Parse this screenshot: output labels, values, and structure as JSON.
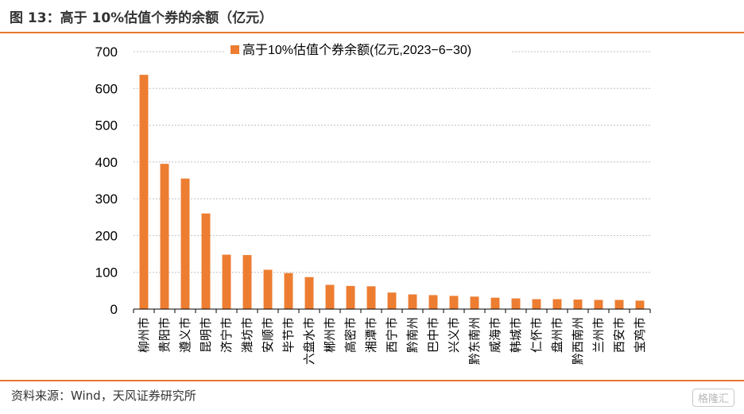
{
  "header": {
    "title": "图 13：高于 10%估值个券的余额（亿元）"
  },
  "footer": {
    "source": "资料来源：Wind，天风证券研究所",
    "watermark": "格隆汇"
  },
  "chart_data": {
    "type": "bar",
    "title": "",
    "xlabel": "",
    "ylabel": "",
    "ylim": [
      0,
      700
    ],
    "yticks": [
      0,
      100,
      200,
      300,
      400,
      500,
      600,
      700
    ],
    "grid": true,
    "legend_position": "top",
    "bar_color": "#ed7d31",
    "categories": [
      "柳州市",
      "贵阳市",
      "遵义市",
      "昆明市",
      "济宁市",
      "潍坊市",
      "安顺市",
      "毕节市",
      "六盘水市",
      "郴州市",
      "高密市",
      "湘潭市",
      "西宁市",
      "黔南州",
      "巴中市",
      "兴义市",
      "黔东南州",
      "威海市",
      "韩城市",
      "仁怀市",
      "盘州市",
      "黔西南州",
      "兰州市",
      "西安市",
      "宝鸡市"
    ],
    "series": [
      {
        "name": "高于10%估值个券余额(亿元,2023−6−30)",
        "values": [
          637,
          395,
          355,
          260,
          148,
          147,
          107,
          98,
          87,
          66,
          63,
          62,
          45,
          40,
          38,
          36,
          34,
          31,
          29,
          27,
          27,
          26,
          25,
          25,
          23
        ]
      }
    ]
  }
}
